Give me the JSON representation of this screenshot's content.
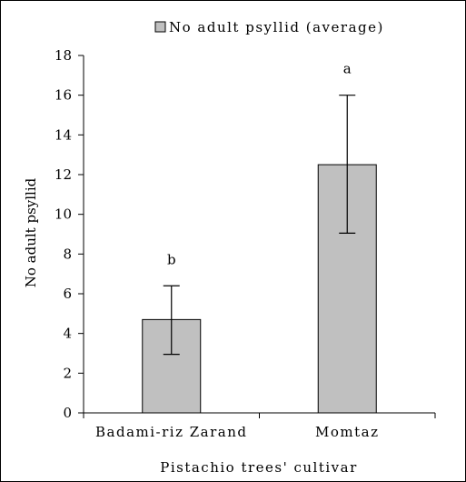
{
  "chart_data": {
    "type": "bar",
    "categories": [
      "Badami-riz Zarand",
      "Momtaz"
    ],
    "series": [
      {
        "name": "No adult psyllid (average)",
        "values": [
          4.7,
          12.5
        ],
        "error_low": [
          2.95,
          9.05
        ],
        "error_high": [
          6.4,
          16.0
        ],
        "significance": [
          "b",
          "a"
        ],
        "color": "#c0c0c0"
      }
    ],
    "xlabel": "Pistachio trees' cultivar",
    "ylabel": "No adult psyllid",
    "ylim": [
      0,
      18
    ],
    "yticks": [
      "0",
      "2",
      "4",
      "6",
      "8",
      "10",
      "12",
      "14",
      "16",
      "18"
    ],
    "legend": {
      "label": "No adult psyllid (average)",
      "position": "top-center"
    },
    "grid": false
  }
}
